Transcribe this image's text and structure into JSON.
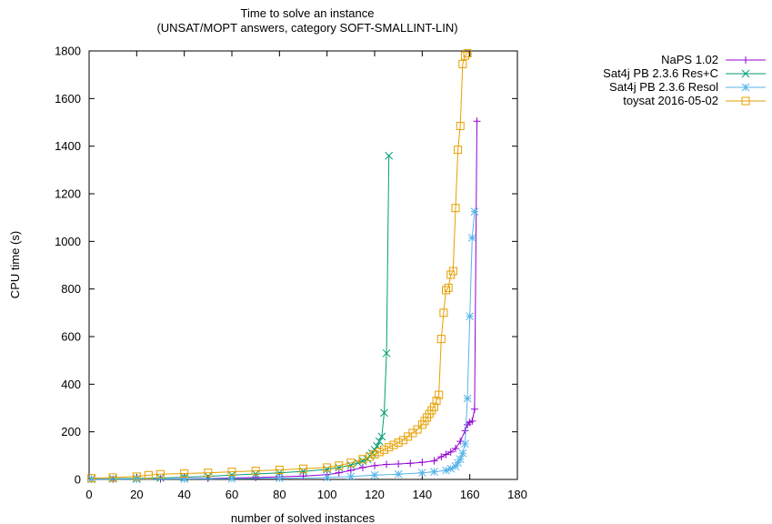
{
  "chart_data": {
    "type": "line",
    "title": "Time to solve an instance",
    "subtitle": "(UNSAT/MOPT answers, category SOFT-SMALLINT-LIN)",
    "xlabel": "number of solved instances",
    "ylabel": "CPU time (s)",
    "xlim": [
      0,
      180
    ],
    "ylim": [
      0,
      1800
    ],
    "xticks": [
      "0",
      "20",
      "40",
      "60",
      "80",
      "100",
      "120",
      "140",
      "160",
      "180"
    ],
    "yticks": [
      "0",
      "200",
      "400",
      "600",
      "800",
      "1000",
      "1200",
      "1400",
      "1600",
      "1800"
    ],
    "grid": false,
    "legend_position": "outside-top-right",
    "series": [
      {
        "name": "NaPS 1.02",
        "color": "#9400d3",
        "marker": "plus",
        "x": [
          1,
          10,
          20,
          30,
          40,
          50,
          60,
          70,
          80,
          90,
          100,
          105,
          110,
          115,
          120,
          125,
          130,
          135,
          140,
          145,
          148,
          150,
          152,
          154,
          156,
          158,
          159,
          160,
          161,
          162,
          163
        ],
        "y": [
          1,
          1,
          2,
          2,
          3,
          4,
          6,
          8,
          11,
          14,
          20,
          28,
          38,
          50,
          58,
          63,
          65,
          68,
          72,
          78,
          95,
          105,
          115,
          130,
          160,
          205,
          230,
          240,
          245,
          295,
          1505
        ]
      },
      {
        "name": "Sat4j PB 2.3.6 Res+C",
        "color": "#009e73",
        "marker": "x",
        "x": [
          1,
          10,
          20,
          30,
          40,
          50,
          60,
          70,
          80,
          90,
          100,
          105,
          110,
          113,
          115,
          117,
          118,
          119,
          120,
          121,
          122,
          123,
          124,
          125,
          126
        ],
        "y": [
          2,
          3,
          4,
          6,
          9,
          13,
          18,
          23,
          28,
          34,
          42,
          50,
          60,
          70,
          78,
          85,
          100,
          110,
          125,
          140,
          160,
          180,
          280,
          530,
          1360
        ]
      },
      {
        "name": "Sat4j PB 2.3.6 Resol",
        "color": "#56b4e9",
        "marker": "star",
        "x": [
          1,
          20,
          40,
          60,
          80,
          100,
          110,
          120,
          130,
          140,
          145,
          150,
          152,
          154,
          155,
          156,
          157,
          158,
          159,
          160,
          161,
          162
        ],
        "y": [
          1,
          1,
          2,
          3,
          5,
          8,
          12,
          18,
          22,
          28,
          32,
          38,
          45,
          55,
          70,
          85,
          110,
          150,
          340,
          685,
          1015,
          1125
        ]
      },
      {
        "name": "toysat 2016-05-02",
        "color": "#e69f00",
        "marker": "square",
        "x": [
          1,
          10,
          20,
          25,
          30,
          40,
          50,
          60,
          70,
          80,
          90,
          100,
          105,
          110,
          115,
          118,
          120,
          122,
          124,
          126,
          128,
          130,
          132,
          134,
          136,
          138,
          140,
          141,
          142,
          143,
          144,
          145,
          146,
          147,
          148,
          149,
          150,
          151,
          152,
          153,
          154,
          155,
          156,
          157,
          158,
          159
        ],
        "y": [
          5,
          8,
          12,
          18,
          22,
          25,
          28,
          32,
          36,
          40,
          45,
          50,
          58,
          70,
          85,
          95,
          105,
          115,
          125,
          135,
          145,
          155,
          165,
          180,
          195,
          210,
          230,
          245,
          260,
          275,
          290,
          305,
          330,
          355,
          590,
          700,
          795,
          805,
          860,
          875,
          1140,
          1385,
          1485,
          1745,
          1780,
          1790
        ]
      }
    ]
  }
}
